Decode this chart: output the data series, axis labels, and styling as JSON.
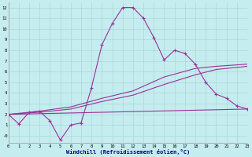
{
  "bg_color": "#c5ecee",
  "grid_color": "#aad8dc",
  "line_color": "#993399",
  "xlabel": "Windchill (Refroidissement éolien,°C)",
  "xlim": [
    0,
    23
  ],
  "ylim": [
    -0.7,
    12.5
  ],
  "xticks": [
    0,
    1,
    2,
    3,
    4,
    5,
    6,
    7,
    8,
    9,
    10,
    11,
    12,
    13,
    14,
    15,
    16,
    17,
    18,
    19,
    20,
    21,
    22,
    23
  ],
  "yticks": [
    0,
    1,
    2,
    3,
    4,
    5,
    6,
    7,
    8,
    9,
    10,
    11,
    12
  ],
  "ytick_labels": [
    "-0",
    "1",
    "2",
    "3",
    "4",
    "5",
    "6",
    "7",
    "8",
    "9",
    "10",
    "11",
    "12"
  ],
  "line1_x": [
    0,
    1,
    2,
    3,
    4,
    5,
    6,
    7,
    8,
    9,
    10,
    11,
    12,
    13,
    14,
    15,
    16,
    17,
    18,
    19,
    20,
    21,
    22,
    23
  ],
  "line1_y": [
    2.0,
    1.1,
    2.2,
    2.3,
    1.4,
    -0.4,
    1.0,
    1.2,
    4.5,
    8.5,
    10.5,
    12.0,
    12.0,
    11.0,
    9.2,
    7.1,
    8.0,
    7.7,
    6.7,
    5.0,
    3.9,
    3.5,
    2.8,
    2.5
  ],
  "line2_x": [
    0,
    3,
    6,
    9,
    12,
    15,
    18,
    20,
    23
  ],
  "line2_y": [
    2.0,
    2.2,
    2.5,
    3.2,
    3.8,
    4.8,
    5.7,
    6.2,
    6.5
  ],
  "line3_x": [
    0,
    3,
    6,
    9,
    12,
    15,
    18,
    20,
    23
  ],
  "line3_y": [
    2.0,
    2.3,
    2.7,
    3.5,
    4.2,
    5.5,
    6.3,
    6.5,
    6.7
  ],
  "line4_x": [
    0,
    23
  ],
  "line4_y": [
    2.0,
    2.5
  ]
}
